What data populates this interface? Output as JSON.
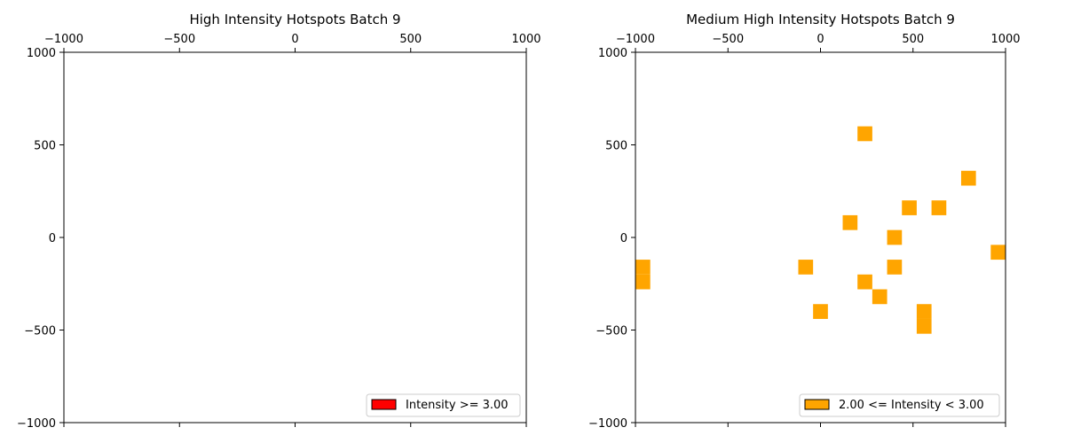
{
  "chart_data": [
    {
      "type": "heatmap",
      "title": "High Intensity Hotspots Batch 9",
      "xlim": [
        -1000,
        1000
      ],
      "ylim": [
        -1000,
        1000
      ],
      "x_tick_labels": [
        "−1000",
        "−500",
        "0",
        "500",
        "1000"
      ],
      "y_tick_labels": [
        "1000",
        "500",
        "0",
        "−500",
        "−1000"
      ],
      "x_ticks": [
        -1000,
        -500,
        0,
        500,
        1000
      ],
      "y_ticks": [
        1000,
        500,
        0,
        -500,
        -1000
      ],
      "x_axis_position": "top",
      "grid": false,
      "legend": {
        "label": "Intensity >= 3.00",
        "color": "#ff0000",
        "placement": "lower-right"
      },
      "cell_size": 80,
      "cells": []
    },
    {
      "type": "heatmap",
      "title": "Medium High Intensity Hotspots Batch 9",
      "xlim": [
        -1000,
        1000
      ],
      "ylim": [
        -1000,
        1000
      ],
      "x_tick_labels": [
        "−1000",
        "−500",
        "0",
        "500",
        "1000"
      ],
      "y_tick_labels": [
        "1000",
        "500",
        "0",
        "−500",
        "−1000"
      ],
      "x_ticks": [
        -1000,
        -500,
        0,
        500,
        1000
      ],
      "y_ticks": [
        1000,
        500,
        0,
        -500,
        -1000
      ],
      "x_axis_position": "top",
      "grid": false,
      "legend": {
        "label": "2.00 <= Intensity < 3.00",
        "color": "#ffa500",
        "placement": "lower-right"
      },
      "cell_size": 80,
      "cells": [
        {
          "x": 240,
          "y": 560
        },
        {
          "x": 800,
          "y": 320
        },
        {
          "x": 160,
          "y": 80
        },
        {
          "x": 480,
          "y": 160
        },
        {
          "x": 640,
          "y": 160
        },
        {
          "x": 400,
          "y": 0
        },
        {
          "x": 960,
          "y": -80
        },
        {
          "x": -960,
          "y": -160
        },
        {
          "x": -960,
          "y": -240
        },
        {
          "x": -80,
          "y": -160
        },
        {
          "x": 400,
          "y": -160
        },
        {
          "x": 240,
          "y": -240
        },
        {
          "x": 320,
          "y": -320
        },
        {
          "x": 0,
          "y": -400
        },
        {
          "x": 560,
          "y": -400
        },
        {
          "x": 560,
          "y": -480
        }
      ]
    }
  ]
}
